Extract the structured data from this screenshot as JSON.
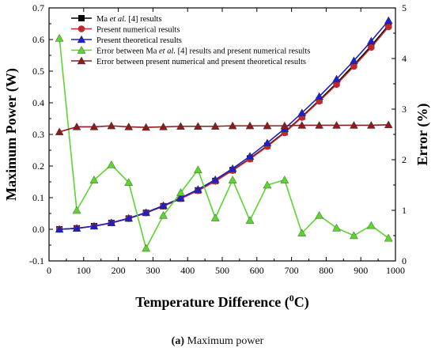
{
  "caption": {
    "tag": "(a)",
    "text": "Maximum power"
  },
  "chart_data": {
    "type": "line",
    "xlabel": "Temperature Difference (⁰C)",
    "xlabel_main": "Temperature Difference (",
    "xlabel_sup": "0",
    "xlabel_end": "C)",
    "ylabel_left": "Maximum Power (W)",
    "ylabel_right": "Error (%)",
    "xlim": [
      0,
      1000
    ],
    "ylim_left": [
      -0.1,
      0.7
    ],
    "ylim_right": [
      0,
      5
    ],
    "x_ticks": [
      0,
      100,
      200,
      300,
      400,
      500,
      600,
      700,
      800,
      900,
      1000
    ],
    "y_left_ticks": [
      "-0.1",
      "0.0",
      "0.1",
      "0.2",
      "0.3",
      "0.4",
      "0.5",
      "0.6",
      "0.7"
    ],
    "y_right_ticks": [
      "0",
      "1",
      "2",
      "3",
      "4",
      "5"
    ],
    "x": [
      30,
      80,
      130,
      180,
      230,
      280,
      330,
      380,
      430,
      480,
      530,
      580,
      630,
      680,
      730,
      780,
      830,
      880,
      930,
      980
    ],
    "series": [
      {
        "name": "Ma et al. [4] results",
        "axis": "left",
        "marker": "square",
        "color": "#000000",
        "values": [
          0.0,
          0.003,
          0.01,
          0.02,
          0.034,
          0.052,
          0.073,
          0.097,
          0.123,
          0.153,
          0.187,
          0.224,
          0.264,
          0.307,
          0.356,
          0.408,
          0.462,
          0.52,
          0.58,
          0.645
        ]
      },
      {
        "name": "Present numerical results",
        "axis": "left",
        "marker": "circle",
        "color": "#c0282d",
        "values": [
          0.0,
          0.003,
          0.01,
          0.02,
          0.034,
          0.052,
          0.073,
          0.097,
          0.122,
          0.152,
          0.186,
          0.222,
          0.262,
          0.305,
          0.354,
          0.405,
          0.458,
          0.515,
          0.575,
          0.64
        ]
      },
      {
        "name": "Present theoretical results",
        "axis": "left",
        "marker": "triangle",
        "color": "#1f1fc8",
        "values": [
          0.0,
          0.003,
          0.01,
          0.021,
          0.035,
          0.053,
          0.075,
          0.099,
          0.126,
          0.157,
          0.192,
          0.231,
          0.273,
          0.318,
          0.368,
          0.42,
          0.475,
          0.533,
          0.595,
          0.66
        ]
      },
      {
        "name": "Error between Ma et al. [4] results and present numerical results",
        "axis": "right",
        "marker": "triangle",
        "color": "#5ad62c",
        "values": [
          4.4,
          1.0,
          1.6,
          1.9,
          1.55,
          0.25,
          0.9,
          1.35,
          1.8,
          0.85,
          1.6,
          0.8,
          1.5,
          1.6,
          0.55,
          0.9,
          0.65,
          0.5,
          0.7,
          0.45
        ]
      },
      {
        "name": "Error between present numerical and present theoretical results",
        "axis": "right",
        "marker": "triangle",
        "color": "#8a1c1c",
        "values": [
          2.55,
          2.65,
          2.65,
          2.67,
          2.65,
          2.64,
          2.65,
          2.66,
          2.66,
          2.66,
          2.67,
          2.67,
          2.67,
          2.67,
          2.68,
          2.68,
          2.68,
          2.68,
          2.68,
          2.69
        ]
      }
    ],
    "legend": [
      {
        "pre": "Ma ",
        "italic": "et al.",
        "post": " [4] results"
      },
      {
        "pre": "Present numerical results",
        "italic": "",
        "post": ""
      },
      {
        "pre": "Present theoretical results",
        "italic": "",
        "post": ""
      },
      {
        "pre": "Error between Ma ",
        "italic": "et al.",
        "post": " [4] results and present numerical results"
      },
      {
        "pre": "Error between present numerical and present theoretical results",
        "italic": "",
        "post": ""
      }
    ],
    "legend_position": "top-left",
    "grid": false
  }
}
